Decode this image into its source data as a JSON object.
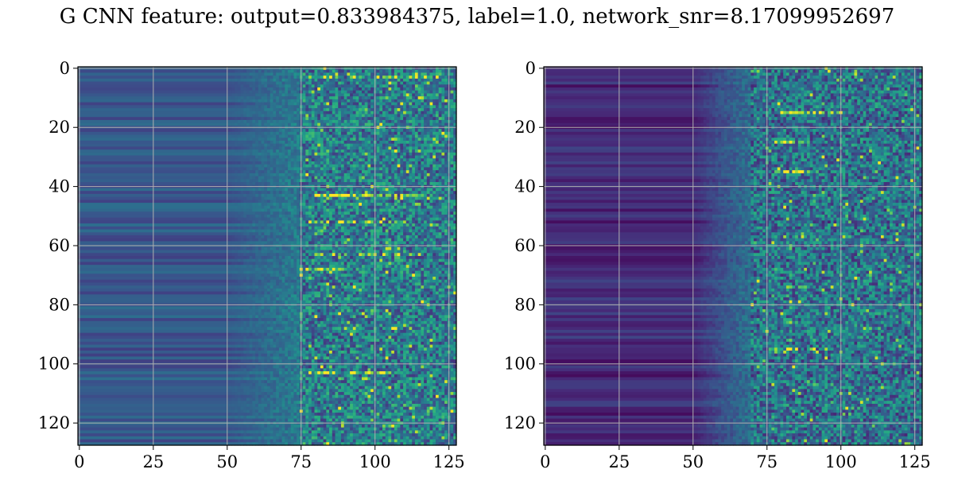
{
  "title": "G CNN feature: output=0.833984375, label=1.0, network_snr=8.17099952697",
  "chart_data": [
    {
      "type": "heatmap",
      "title": "",
      "xlabel": "",
      "ylabel": "",
      "xlim": [
        0,
        127
      ],
      "ylim": [
        127,
        0
      ],
      "grid": true,
      "colormap": "viridis",
      "xticks": [
        0,
        25,
        50,
        75,
        100,
        125
      ],
      "yticks": [
        0,
        20,
        40,
        60,
        80,
        100,
        120
      ],
      "xtick_labels": [
        "0",
        "25",
        "50",
        "75",
        "100",
        "125"
      ],
      "ytick_labels": [
        "0",
        "20",
        "40",
        "60",
        "80",
        "100",
        "120"
      ],
      "value_range": [
        0,
        1
      ],
      "structure": {
        "rows": 128,
        "cols": 128,
        "flat_region_end_col": 50,
        "transition_end_col": 75,
        "flat_level": 0.28,
        "noise_level": 0.42,
        "bright_rows": [
          3,
          43,
          52,
          63,
          68,
          103
        ],
        "bright_row_cols": [
          [
            78,
            118
          ],
          [
            75,
            115
          ],
          [
            78,
            110
          ],
          [
            78,
            115
          ],
          [
            75,
            90
          ],
          [
            78,
            105
          ]
        ]
      }
    },
    {
      "type": "heatmap",
      "title": "",
      "xlabel": "",
      "ylabel": "",
      "xlim": [
        0,
        127
      ],
      "ylim": [
        127,
        0
      ],
      "grid": true,
      "colormap": "viridis",
      "xticks": [
        0,
        25,
        50,
        75,
        100,
        125
      ],
      "yticks": [
        0,
        20,
        40,
        60,
        80,
        100,
        120
      ],
      "xtick_labels": [
        "0",
        "25",
        "50",
        "75",
        "100",
        "125"
      ],
      "ytick_labels": [
        "0",
        "20",
        "40",
        "60",
        "80",
        "100",
        "120"
      ],
      "value_range": [
        0,
        1
      ],
      "structure": {
        "rows": 128,
        "cols": 128,
        "flat_region_end_col": 50,
        "transition_end_col": 70,
        "flat_level": 0.12,
        "noise_level": 0.38,
        "bright_rows": [
          15,
          25,
          35,
          74,
          77,
          86,
          95
        ],
        "bright_row_cols": [
          [
            80,
            100
          ],
          [
            75,
            90
          ],
          [
            78,
            88
          ],
          [
            82,
            88
          ],
          [
            80,
            85
          ],
          [
            82,
            86
          ],
          [
            75,
            95
          ]
        ]
      }
    }
  ]
}
